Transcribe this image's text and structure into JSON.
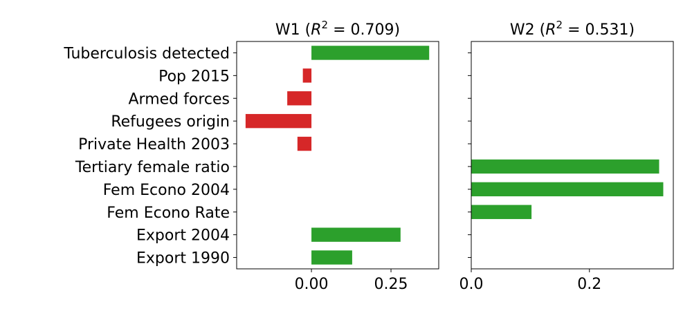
{
  "chart_data": [
    {
      "type": "bar",
      "orientation": "horizontal",
      "title_text": "W1 (",
      "title_r2_label": "R",
      "title_r2_exp": "2",
      "title_value": " = 0.709)",
      "categories": [
        "Tuberculosis detected",
        "Pop 2015",
        "Armed forces",
        "Refugees origin",
        "Private Health 2003",
        "Tertiary female ratio",
        "Fem Econo 2004",
        "Fem Econo Rate",
        "Export 2004",
        "Export 1990"
      ],
      "values": [
        0.37,
        -0.027,
        -0.076,
        -0.207,
        -0.044,
        0,
        0,
        0,
        0.28,
        0.128
      ],
      "xlim": [
        -0.235,
        0.4
      ],
      "xticks": [
        0.0,
        0.25
      ],
      "xtick_labels": [
        "0.00",
        "0.25"
      ],
      "positive_color": "#2ca02c",
      "negative_color": "#d62728"
    },
    {
      "type": "bar",
      "orientation": "horizontal",
      "title_text": "W2 (",
      "title_r2_label": "R",
      "title_r2_exp": "2",
      "title_value": " = 0.531)",
      "categories": [
        "Tuberculosis detected",
        "Pop 2015",
        "Armed forces",
        "Refugees origin",
        "Private Health 2003",
        "Tertiary female ratio",
        "Fem Econo 2004",
        "Fem Econo Rate",
        "Export 2004",
        "Export 1990"
      ],
      "values": [
        0,
        0,
        0,
        0,
        0,
        0.318,
        0.325,
        0.102,
        0,
        0
      ],
      "xlim": [
        0,
        0.342
      ],
      "xticks": [
        0.0,
        0.2
      ],
      "xtick_labels": [
        "0.0",
        "0.2"
      ],
      "positive_color": "#2ca02c",
      "negative_color": "#d62728",
      "shared_y": true
    }
  ]
}
